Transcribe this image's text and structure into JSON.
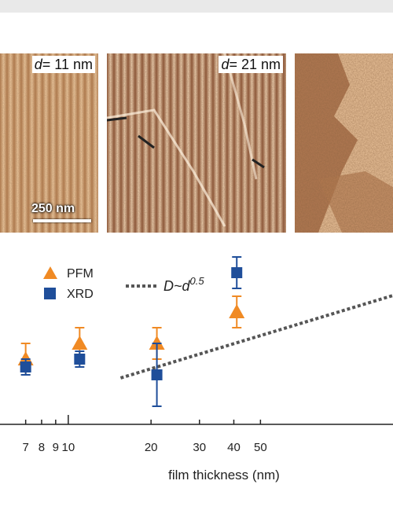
{
  "panels": [
    {
      "label_var": "d",
      "label_val": "= 11 nm"
    },
    {
      "label_var": "d",
      "label_val": "= 21 nm"
    },
    {
      "label_var": "",
      "label_val": ""
    }
  ],
  "scale_bar": "250 nm",
  "chart_data": {
    "type": "scatter",
    "xlabel": "film thickness (nm)",
    "x_scale": "log",
    "xlim": [
      6.5,
      58
    ],
    "x_ticks": [
      "7",
      "8",
      "9",
      "10",
      "20",
      "30",
      "40",
      "50"
    ],
    "series": [
      {
        "name": "PFM",
        "marker": "triangle",
        "color": "#f08a24",
        "points": [
          {
            "x": 7,
            "y": 1.0,
            "err": 0.1
          },
          {
            "x": 11,
            "y": 1.1,
            "err": 0.1
          },
          {
            "x": 21,
            "y": 1.1,
            "err": 0.1
          },
          {
            "x": 41,
            "y": 1.3,
            "err": 0.1
          }
        ]
      },
      {
        "name": "XRD",
        "marker": "square",
        "color": "#1f4e9a",
        "points": [
          {
            "x": 7,
            "y": 0.95,
            "err": 0.05
          },
          {
            "x": 11,
            "y": 1.0,
            "err": 0.05
          },
          {
            "x": 21,
            "y": 0.9,
            "err": 0.2
          },
          {
            "x": 41,
            "y": 1.55,
            "err": 0.1
          }
        ]
      }
    ],
    "fit": {
      "label": "D~d",
      "exponent": "0.5",
      "style": "dotted",
      "color": "#555555"
    }
  },
  "legend": {
    "pfm": "PFM",
    "xrd": "XRD",
    "fit_base": "D~d",
    "fit_exp": "0.5"
  }
}
